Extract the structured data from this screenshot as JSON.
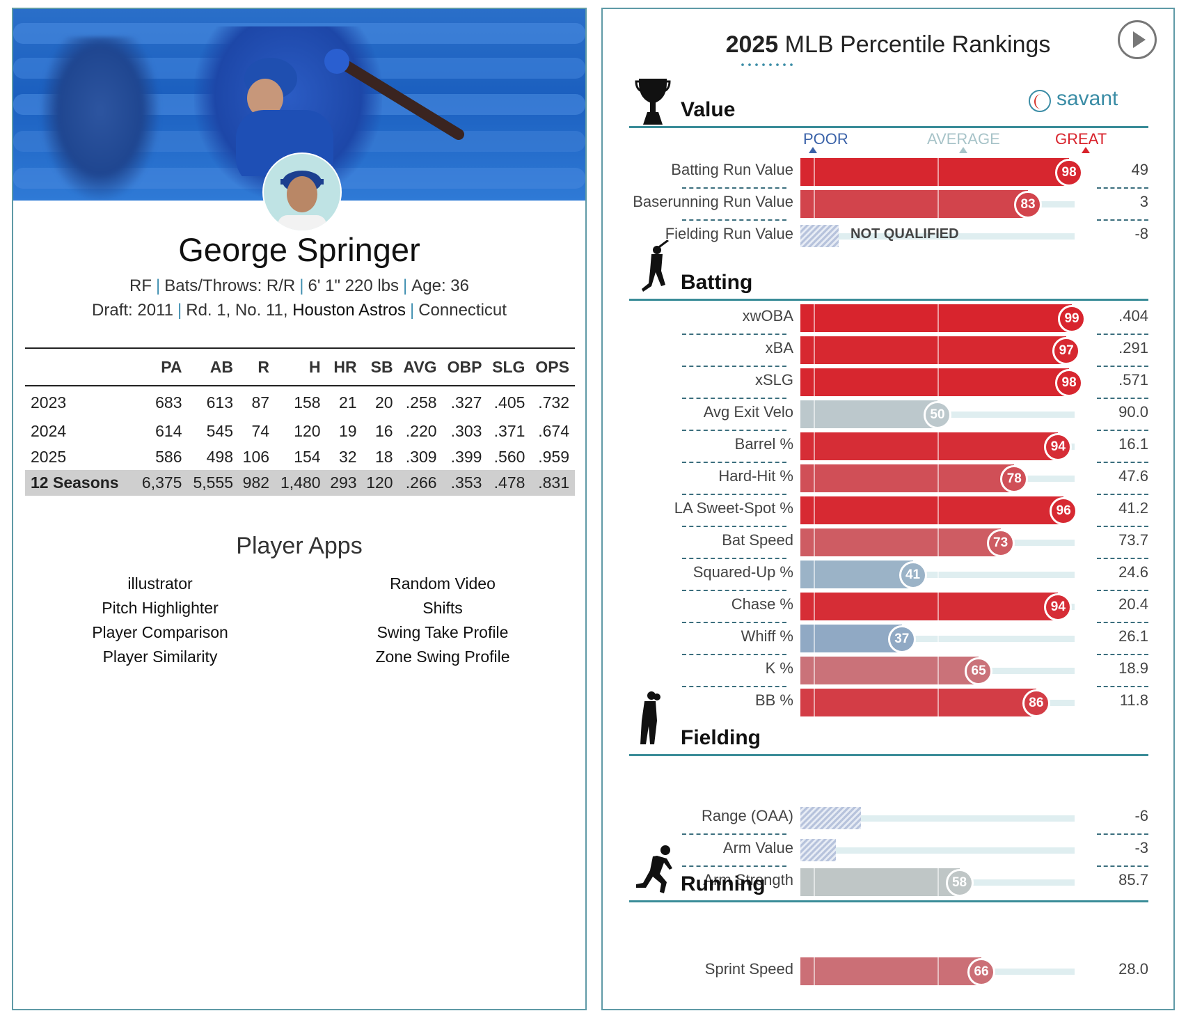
{
  "player": {
    "name": "George Springer",
    "position": "RF",
    "bats_throws": "Bats/Throws: R/R",
    "height_weight": "6' 1\" 220 lbs",
    "age": "Age: 36",
    "draft_year_label": "Draft: 2011",
    "draft_pick": "Rd. 1, No. 11,",
    "draft_team": "Houston Astros",
    "school": "Connecticut"
  },
  "stats_table": {
    "columns": [
      "",
      "PA",
      "AB",
      "R",
      "H",
      "HR",
      "SB",
      "AVG",
      "OBP",
      "SLG",
      "OPS"
    ],
    "rows": [
      [
        "2023",
        "683",
        "613",
        "87",
        "158",
        "21",
        "20",
        ".258",
        ".327",
        ".405",
        ".732"
      ],
      [
        "2024",
        "614",
        "545",
        "74",
        "120",
        "19",
        "16",
        ".220",
        ".303",
        ".371",
        ".674"
      ],
      [
        "2025",
        "586",
        "498",
        "106",
        "154",
        "32",
        "18",
        ".309",
        ".399",
        ".560",
        ".959"
      ]
    ],
    "total": [
      "12 Seasons",
      "6,375",
      "5,555",
      "982",
      "1,480",
      "293",
      "120",
      ".266",
      ".353",
      ".478",
      ".831"
    ]
  },
  "apps": {
    "title": "Player Apps",
    "left": [
      "illustrator",
      "Pitch Highlighter",
      "Player Comparison",
      "Player Similarity"
    ],
    "right": [
      "Random Video",
      "Shifts",
      "Swing Take Profile",
      "Zone Swing Profile"
    ]
  },
  "rankings": {
    "title_year": "2025",
    "title_rest": "MLB Percentile Rankings",
    "brand": "savant",
    "scale": {
      "poor": "POOR",
      "average": "AVERAGE",
      "great": "GREAT"
    },
    "not_qualified": "NOT QUALIFIED",
    "sections": [
      {
        "name": "Value",
        "icon": "trophy-icon",
        "metrics": [
          {
            "label": "Batting Run Value",
            "percentile": 98,
            "value": "49"
          },
          {
            "label": "Baserunning Run Value",
            "percentile": 83,
            "value": "3"
          },
          {
            "label": "Fielding Run Value",
            "percentile": null,
            "value": "-8",
            "not_qualified": true,
            "hatch_fraction": 0.14
          }
        ]
      },
      {
        "name": "Batting",
        "icon": "batter-icon",
        "metrics": [
          {
            "label": "xwOBA",
            "percentile": 99,
            "value": ".404"
          },
          {
            "label": "xBA",
            "percentile": 97,
            "value": ".291"
          },
          {
            "label": "xSLG",
            "percentile": 98,
            "value": ".571"
          },
          {
            "label": "Avg Exit Velo",
            "percentile": 50,
            "value": "90.0"
          },
          {
            "label": "Barrel %",
            "percentile": 94,
            "value": "16.1"
          },
          {
            "label": "Hard-Hit %",
            "percentile": 78,
            "value": "47.6"
          },
          {
            "label": "LA Sweet-Spot %",
            "percentile": 96,
            "value": "41.2"
          },
          {
            "label": "Bat Speed",
            "percentile": 73,
            "value": "73.7"
          },
          {
            "label": "Squared-Up %",
            "percentile": 41,
            "value": "24.6"
          },
          {
            "label": "Chase %",
            "percentile": 94,
            "value": "20.4"
          },
          {
            "label": "Whiff %",
            "percentile": 37,
            "value": "26.1"
          },
          {
            "label": "K %",
            "percentile": 65,
            "value": "18.9"
          },
          {
            "label": "BB %",
            "percentile": 86,
            "value": "11.8"
          }
        ]
      },
      {
        "name": "Fielding",
        "icon": "fielder-icon",
        "metrics": [
          {
            "label": "Range (OAA)",
            "percentile": null,
            "value": "-6",
            "hatch_fraction": 0.22
          },
          {
            "label": "Arm Value",
            "percentile": null,
            "value": "-3",
            "hatch_fraction": 0.13
          },
          {
            "label": "Arm Strength",
            "percentile": 58,
            "value": "85.7",
            "neutral": true
          }
        ]
      },
      {
        "name": "Running",
        "icon": "runner-icon",
        "metrics": [
          {
            "label": "Sprint Speed",
            "percentile": 66,
            "value": "28.0"
          }
        ]
      }
    ]
  },
  "colors": {
    "accent": "#3a8c98",
    "great": "#d8222b",
    "poor": "#3a62a8",
    "neutral": "#bcc4c4"
  }
}
